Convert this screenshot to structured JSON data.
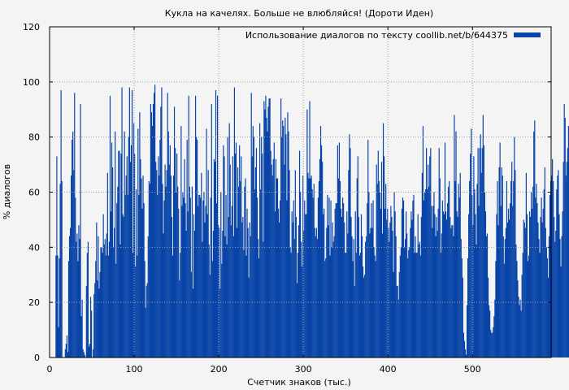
{
  "chart_data": {
    "type": "bar",
    "title": "Кукла на качелях. Больше не влюбляйся! (Дороти Иден)",
    "xlabel": "Счетчик знаков (тыс.)",
    "ylabel": "% диалогов",
    "xlim": [
      0,
      593
    ],
    "ylim": [
      0,
      120
    ],
    "xticks": [
      0,
      100,
      200,
      300,
      400,
      500
    ],
    "yticks": [
      0,
      20,
      40,
      60,
      80,
      100,
      120
    ],
    "grid": true,
    "legend_position": "top-right",
    "series": [
      {
        "name": "Использование диалогов по тексту coollib.net/b/644375",
        "color": "#0944a8",
        "x_step": 1,
        "values": [
          0,
          0,
          0,
          0,
          0,
          0,
          0,
          37,
          73,
          37,
          11,
          36,
          63,
          97,
          64,
          0,
          0,
          0,
          3,
          5,
          8,
          2,
          35,
          44,
          47,
          66,
          79,
          82,
          68,
          96,
          58,
          42,
          45,
          35,
          48,
          43,
          92,
          15,
          21,
          3,
          2,
          1,
          0,
          26,
          38,
          42,
          4,
          5,
          22,
          17,
          0,
          3,
          23,
          27,
          35,
          49,
          28,
          44,
          25,
          31,
          40,
          40,
          38,
          52,
          41,
          43,
          37,
          45,
          67,
          37,
          42,
          95,
          53,
          78,
          69,
          40,
          47,
          82,
          34,
          56,
          62,
          75,
          75,
          41,
          74,
          98,
          52,
          51,
          82,
          59,
          66,
          73,
          59,
          80,
          98,
          71,
          77,
          97,
          38,
          85,
          74,
          33,
          61,
          37,
          83,
          59,
          89,
          72,
          65,
          54,
          66,
          56,
          35,
          18,
          26,
          27,
          44,
          64,
          63,
          92,
          89,
          84,
          92,
          96,
          99,
          71,
          68,
          59,
          73,
          66,
          79,
          91,
          98,
          63,
          45,
          57,
          70,
          62,
          68,
          96,
          82,
          70,
          77,
          66,
          51,
          37,
          66,
          91,
          76,
          60,
          74,
          62,
          54,
          28,
          38,
          84,
          55,
          60,
          58,
          72,
          56,
          46,
          79,
          53,
          95,
          62,
          58,
          31,
          62,
          25,
          52,
          46,
          95,
          80,
          79,
          55,
          59,
          59,
          58,
          67,
          42,
          57,
          60,
          49,
          55,
          83,
          52,
          68,
          41,
          30,
          58,
          92,
          35,
          46,
          72,
          71,
          97,
          56,
          95,
          48,
          47,
          25,
          60,
          34,
          46,
          77,
          73,
          44,
          59,
          41,
          80,
          51,
          85,
          70,
          48,
          55,
          73,
          44,
          98,
          74,
          78,
          47,
          69,
          62,
          77,
          64,
          73,
          49,
          51,
          39,
          62,
          65,
          37,
          54,
          47,
          29,
          49,
          44,
          96,
          73,
          84,
          80,
          61,
          69,
          76,
          58,
          43,
          36,
          85,
          61,
          80,
          74,
          42,
          93,
          90,
          95,
          87,
          82,
          91,
          94,
          94,
          75,
          70,
          66,
          72,
          78,
          53,
          72,
          65,
          65,
          54,
          49,
          57,
          94,
          80,
          86,
          84,
          70,
          87,
          81,
          57,
          89,
          82,
          68,
          40,
          38,
          53,
          49,
          57,
          43,
          68,
          51,
          27,
          38,
          48,
          75,
          60,
          42,
          33,
          66,
          46,
          57,
          52,
          52,
          90,
          67,
          65,
          93,
          65,
          66,
          61,
          58,
          63,
          47,
          44,
          47,
          43,
          58,
          64,
          72,
          84,
          77,
          71,
          52,
          54,
          35,
          36,
          47,
          59,
          48,
          58,
          37,
          57,
          40,
          49,
          42,
          44,
          54,
          56,
          56,
          77,
          65,
          78,
          64,
          54,
          51,
          58,
          56,
          49,
          38,
          38,
          53,
          45,
          68,
          81,
          76,
          51,
          44,
          35,
          43,
          26,
          53,
          38,
          65,
          73,
          51,
          37,
          38,
          52,
          44,
          33,
          29,
          30,
          42,
          44,
          56,
          79,
          60,
          45,
          47,
          56,
          47,
          57,
          40,
          37,
          35,
          70,
          63,
          75,
          64,
          60,
          54,
          71,
          45,
          85,
          73,
          54,
          63,
          50,
          54,
          47,
          42,
          49,
          55,
          51,
          46,
          31,
          60,
          53,
          44,
          26,
          26,
          21,
          31,
          37,
          40,
          54,
          58,
          57,
          40,
          43,
          53,
          45,
          36,
          39,
          40,
          47,
          53,
          50,
          57,
          59,
          38,
          44,
          38,
          38,
          52,
          41,
          42,
          37,
          51,
          67,
          84,
          57,
          60,
          61,
          76,
          61,
          70,
          62,
          73,
          76,
          55,
          47,
          55,
          60,
          52,
          44,
          51,
          46,
          54,
          76,
          65,
          38,
          45,
          57,
          53,
          52,
          78,
          53,
          50,
          56,
          62,
          64,
          51,
          47,
          48,
          48,
          44,
          88,
          64,
          82,
          53,
          51,
          63,
          58,
          67,
          43,
          36,
          29,
          9,
          6,
          3,
          1,
          19,
          36,
          52,
          64,
          74,
          83,
          59,
          48,
          73,
          61,
          52,
          41,
          63,
          76,
          55,
          76,
          81,
          67,
          76,
          88,
          77,
          60,
          53,
          44,
          45,
          29,
          19,
          17,
          10,
          9,
          9,
          11,
          15,
          21,
          35,
          52,
          64,
          48,
          69,
          78,
          55,
          69,
          66,
          44,
          34,
          43,
          47,
          64,
          49,
          54,
          50,
          56,
          64,
          71,
          55,
          64,
          80,
          68,
          41,
          35,
          28,
          22,
          19,
          21,
          17,
          30,
          38,
          50,
          49,
          47,
          67,
          52,
          35,
          37,
          53,
          51,
          60,
          54,
          62,
          82,
          86,
          58,
          63,
          56,
          49,
          43,
          38,
          51,
          58,
          49,
          54,
          61,
          69,
          47,
          40,
          36,
          29,
          44,
          59,
          64,
          66,
          72,
          64,
          51,
          42,
          46,
          61,
          66,
          68,
          52,
          43,
          33,
          44,
          53,
          71,
          92,
          87,
          66,
          71,
          76,
          84,
          79,
          60,
          46,
          43,
          55,
          65,
          68,
          72,
          84,
          93,
          77,
          63,
          40,
          52,
          34,
          35,
          54,
          34,
          30,
          52,
          36
        ]
      }
    ]
  }
}
